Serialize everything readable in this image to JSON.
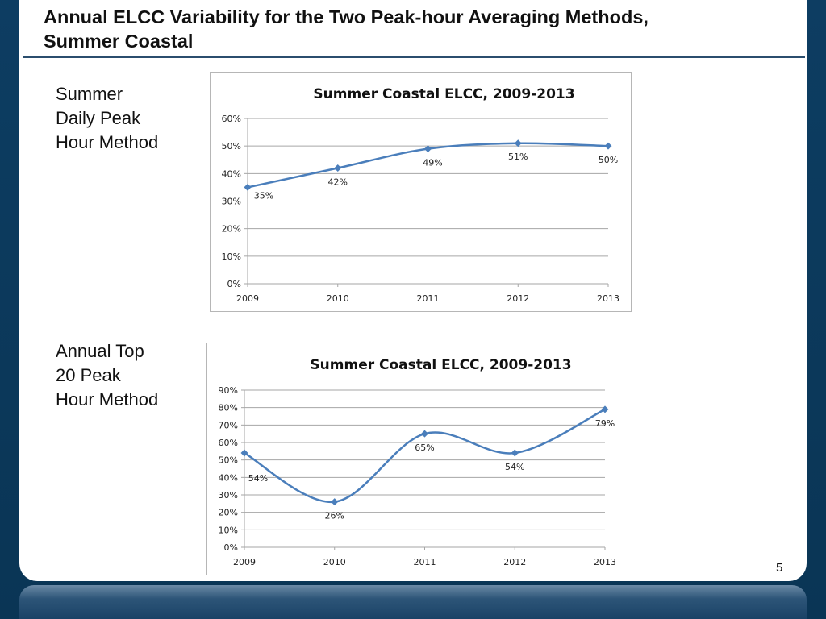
{
  "slide": {
    "title_line1": "Annual ELCC Variability for the Two Peak-hour Averaging Methods,",
    "title_line2": "Summer Coastal",
    "page_number": "5",
    "method_1_label": [
      "Summer",
      "Daily Peak",
      "Hour Method"
    ],
    "method_2_label": [
      "Annual Top",
      "20 Peak",
      "Hour Method"
    ]
  },
  "colors": {
    "series": "#4a7ebb",
    "gridline": "#a6a6a6",
    "background_frame": "#0b3a5e"
  },
  "chart_data": [
    {
      "type": "line",
      "title": "Summer Coastal ELCC, 2009-2013",
      "xlabel": "",
      "ylabel": "",
      "categories": [
        "2009",
        "2010",
        "2011",
        "2012",
        "2013"
      ],
      "series": [
        {
          "values": [
            35,
            42,
            49,
            51,
            50
          ]
        }
      ],
      "data_labels": [
        "35%",
        "42%",
        "49%",
        "51%",
        "50%"
      ],
      "ylim": [
        0,
        60
      ],
      "yticks": [
        0,
        10,
        20,
        30,
        40,
        50,
        60
      ],
      "ytick_labels": [
        "0%",
        "10%",
        "20%",
        "30%",
        "40%",
        "50%",
        "60%"
      ],
      "smooth": true,
      "marker": "diamond",
      "grid": true,
      "legend": "none"
    },
    {
      "type": "line",
      "title": "Summer Coastal ELCC, 2009-2013",
      "xlabel": "",
      "ylabel": "",
      "categories": [
        "2009",
        "2010",
        "2011",
        "2012",
        "2013"
      ],
      "series": [
        {
          "values": [
            54,
            26,
            65,
            54,
            79
          ]
        }
      ],
      "data_labels": [
        "54%",
        "26%",
        "65%",
        "54%",
        "79%"
      ],
      "ylim": [
        0,
        90
      ],
      "yticks": [
        0,
        10,
        20,
        30,
        40,
        50,
        60,
        70,
        80,
        90
      ],
      "ytick_labels": [
        "0%",
        "10%",
        "20%",
        "30%",
        "40%",
        "50%",
        "60%",
        "70%",
        "80%",
        "90%"
      ],
      "smooth": true,
      "marker": "diamond",
      "grid": true,
      "legend": "none"
    }
  ]
}
